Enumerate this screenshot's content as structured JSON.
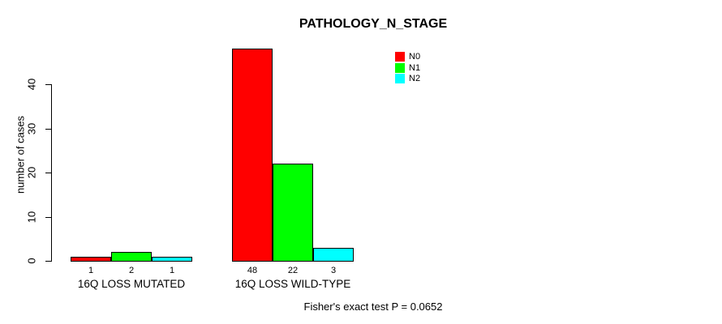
{
  "chart_data": {
    "type": "bar",
    "title": "PATHOLOGY_N_STAGE",
    "xlabel": "",
    "ylabel": "number of cases",
    "categories": [
      "16Q LOSS MUTATED",
      "16Q LOSS WILD-TYPE"
    ],
    "series": [
      {
        "name": "N0",
        "color": "#ff0000",
        "values": [
          1,
          48
        ]
      },
      {
        "name": "N1",
        "color": "#00ff00",
        "values": [
          2,
          22
        ]
      },
      {
        "name": "N2",
        "color": "#00ffff",
        "values": [
          1,
          3
        ]
      }
    ],
    "bar_value_labels": [
      [
        "1",
        "2",
        "1"
      ],
      [
        "48",
        "22",
        "3"
      ]
    ],
    "yticks": [
      0,
      10,
      20,
      30,
      40
    ],
    "ylim": [
      0,
      48
    ],
    "grid": false,
    "legend_position": "top-right",
    "legend": [
      {
        "label": "N0",
        "color": "#ff0000"
      },
      {
        "label": "N1",
        "color": "#00ff00"
      },
      {
        "label": "N2",
        "color": "#00ffff"
      }
    ],
    "annotation": "Fisher's exact test P = 0.0652",
    "axis_color": "#000000",
    "bar_border_color": "#000000"
  }
}
